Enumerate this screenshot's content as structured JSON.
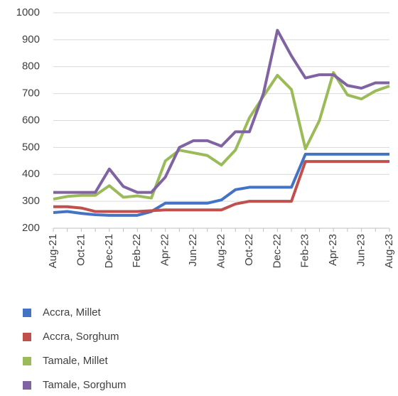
{
  "chart_data": {
    "type": "line",
    "categories": [
      "Aug-21",
      null,
      "Oct-21",
      null,
      "Dec-21",
      null,
      "Feb-22",
      null,
      "Apr-22",
      null,
      "Jun-22",
      null,
      "Aug-22",
      null,
      "Oct-22",
      null,
      "Dec-22",
      null,
      "Feb-23",
      null,
      "Apr-23",
      null,
      "Jun-23",
      null,
      "Aug-23"
    ],
    "series": [
      {
        "name": "Accra, Millet",
        "color": "#4472c4",
        "values": [
          258,
          262,
          255,
          250,
          248,
          248,
          248,
          262,
          293,
          293,
          293,
          293,
          305,
          343,
          352,
          352,
          352,
          352,
          475,
          475,
          475,
          475,
          475,
          475,
          475
        ]
      },
      {
        "name": "Accra, Sorghum",
        "color": "#c0504d",
        "values": [
          280,
          280,
          275,
          262,
          262,
          262,
          262,
          265,
          268,
          268,
          268,
          268,
          268,
          290,
          300,
          300,
          300,
          300,
          448,
          448,
          448,
          448,
          448,
          448,
          448
        ]
      },
      {
        "name": "Tamale, Millet",
        "color": "#9bbb59",
        "values": [
          308,
          318,
          322,
          322,
          358,
          315,
          320,
          312,
          450,
          490,
          480,
          470,
          435,
          490,
          610,
          690,
          768,
          715,
          495,
          600,
          778,
          695,
          680,
          710,
          728
        ]
      },
      {
        "name": "Tamale, Sorghum",
        "color": "#8064a2",
        "values": [
          333,
          333,
          333,
          333,
          420,
          355,
          333,
          333,
          390,
          500,
          525,
          525,
          505,
          558,
          558,
          700,
          935,
          840,
          758,
          770,
          770,
          730,
          720,
          740,
          740
        ]
      }
    ],
    "ylim": [
      200,
      1000
    ],
    "yticks": [
      200,
      300,
      400,
      500,
      600,
      700,
      800,
      900,
      1000
    ],
    "grid": true,
    "legend": "bottom"
  }
}
